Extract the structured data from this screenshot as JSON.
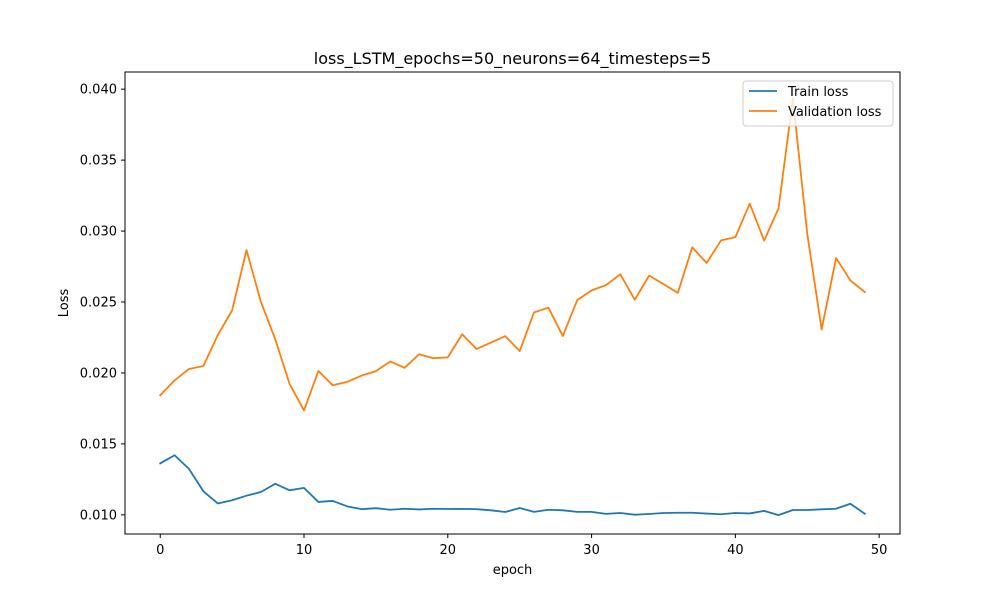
{
  "chart_data": {
    "type": "line",
    "title": "loss_LSTM_epochs=50_neurons=64_timesteps=5",
    "xlabel": "epoch",
    "ylabel": "Loss",
    "xlim": [
      -2.45,
      51.45
    ],
    "ylim": [
      0.00865,
      0.04121
    ],
    "xticks": [
      0,
      10,
      20,
      30,
      40,
      50
    ],
    "yticks": [
      0.01,
      0.015,
      0.02,
      0.025,
      0.03,
      0.035,
      0.04
    ],
    "ytick_labels": [
      "0.010",
      "0.015",
      "0.020",
      "0.025",
      "0.030",
      "0.035",
      "0.040"
    ],
    "grid": false,
    "legend_position": "top-right",
    "x": [
      0,
      1,
      2,
      3,
      4,
      5,
      6,
      7,
      8,
      9,
      10,
      11,
      12,
      13,
      14,
      15,
      16,
      17,
      18,
      19,
      20,
      21,
      22,
      23,
      24,
      25,
      26,
      27,
      28,
      29,
      30,
      31,
      32,
      33,
      34,
      35,
      36,
      37,
      38,
      39,
      40,
      41,
      42,
      43,
      44,
      45,
      46,
      47,
      48,
      49
    ],
    "series": [
      {
        "name": "Train loss",
        "color": "#1f77b4",
        "values": [
          0.01363,
          0.0142,
          0.01324,
          0.01166,
          0.0108,
          0.01103,
          0.01135,
          0.01161,
          0.01219,
          0.01173,
          0.0119,
          0.01091,
          0.01098,
          0.0106,
          0.0104,
          0.01047,
          0.01036,
          0.01043,
          0.01038,
          0.01043,
          0.01041,
          0.01042,
          0.0104,
          0.01032,
          0.0102,
          0.01048,
          0.01021,
          0.01036,
          0.01032,
          0.01021,
          0.01021,
          0.01007,
          0.01013,
          0.01001,
          0.01006,
          0.01013,
          0.01015,
          0.01015,
          0.01009,
          0.01004,
          0.01013,
          0.0101,
          0.01028,
          0.00998,
          0.01034,
          0.01034,
          0.01039,
          0.01043,
          0.01078,
          0.01008
        ]
      },
      {
        "name": "Validation loss",
        "color": "#ff7f0e",
        "values": [
          0.01843,
          0.01948,
          0.02028,
          0.02049,
          0.02266,
          0.02441,
          0.02866,
          0.02501,
          0.02237,
          0.01922,
          0.01736,
          0.02014,
          0.01913,
          0.01937,
          0.01981,
          0.02013,
          0.02081,
          0.02036,
          0.02132,
          0.02104,
          0.0211,
          0.02273,
          0.02168,
          0.02214,
          0.0226,
          0.02154,
          0.02427,
          0.0246,
          0.0226,
          0.02513,
          0.02582,
          0.02619,
          0.02695,
          0.02516,
          0.02686,
          0.02627,
          0.02564,
          0.02886,
          0.02775,
          0.02934,
          0.02957,
          0.03193,
          0.02933,
          0.03159,
          0.03935,
          0.02981,
          0.02306,
          0.0281,
          0.02652,
          0.0257
        ]
      }
    ]
  }
}
